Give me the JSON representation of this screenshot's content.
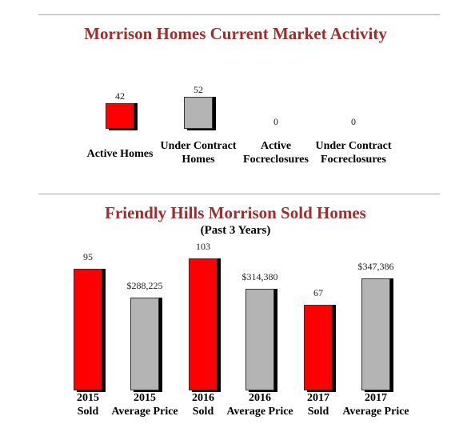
{
  "chart_data": [
    {
      "type": "bar",
      "title": "Morrison Homes Current Market Activity",
      "categories": [
        [
          "Active Homes"
        ],
        [
          "Under Contract",
          "Homes"
        ],
        [
          "Active",
          "Focreclosures"
        ],
        [
          "Under Contract",
          "Focreclosures"
        ]
      ],
      "values": [
        42,
        52,
        0,
        0
      ],
      "value_labels": [
        "42",
        "52",
        "0",
        "0"
      ],
      "colors": [
        "#ff0000",
        "#b4b4b4",
        "#ff0000",
        "#b4b4b4"
      ],
      "ylim": [
        0,
        60
      ]
    },
    {
      "type": "bar",
      "title": "Friendly Hills Morrison Sold Homes",
      "subtitle": "(Past 3 Years)",
      "categories": [
        [
          "2015",
          "Sold"
        ],
        [
          "2015",
          "Average Price"
        ],
        [
          "2016",
          "Sold"
        ],
        [
          "2016",
          "Average Price"
        ],
        [
          "2017",
          "Sold"
        ],
        [
          "2017",
          "Average Price"
        ]
      ],
      "values": [
        95,
        288225,
        103,
        314380,
        67,
        347386
      ],
      "value_labels": [
        "95",
        "$288,225",
        "103",
        "$314,380",
        "67",
        "$347,386"
      ],
      "colors": [
        "#ff0000",
        "#b4b4b4",
        "#ff0000",
        "#b4b4b4",
        "#ff0000",
        "#b4b4b4"
      ]
    }
  ]
}
